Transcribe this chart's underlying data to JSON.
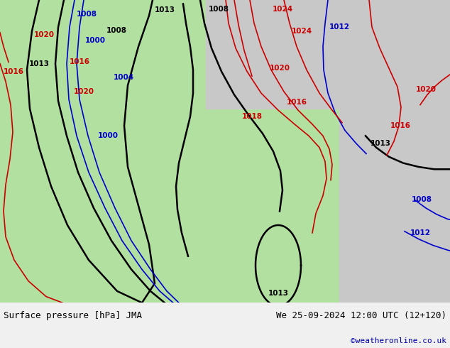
{
  "title_left": "Surface pressure [hPa] JMA",
  "title_right": "We 25-09-2024 12:00 UTC (12+120)",
  "copyright": "©weatheronline.co.uk",
  "bg_map_color": "#b2e0a0",
  "bg_sea_color": "#c8c8c8",
  "contour_black_color": "#000000",
  "contour_blue_color": "#0000cc",
  "contour_red_color": "#cc0000",
  "label_black_color": "#000000",
  "label_blue_color": "#0000cc",
  "label_red_color": "#cc0000",
  "figsize": [
    6.34,
    4.9
  ],
  "dpi": 100,
  "bottom_bar_color": "#f0f0f0",
  "bottom_bar_height": 0.13
}
